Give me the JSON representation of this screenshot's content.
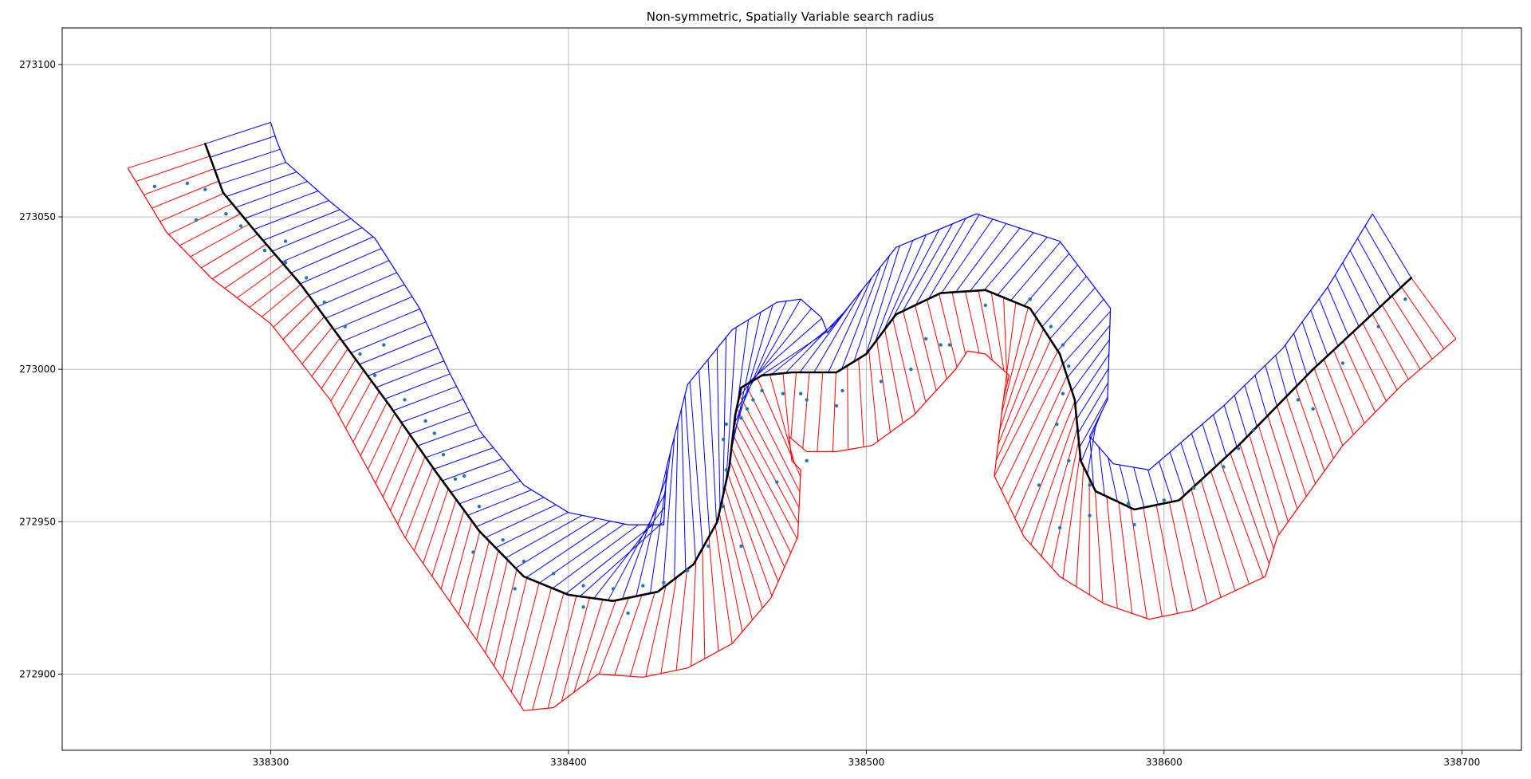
{
  "chart_data": {
    "type": "line",
    "title": "Non-symmetric, Spatially Variable search radius",
    "xlabel": "",
    "ylabel": "",
    "xlim": [
      338230,
      338720
    ],
    "ylim": [
      272875,
      273112
    ],
    "x_ticks": [
      338300,
      338400,
      338500,
      338600,
      338700
    ],
    "y_ticks": [
      272900,
      272950,
      273000,
      273050,
      273100
    ],
    "x_tick_labels": [
      "338300",
      "338400",
      "338500",
      "338600",
      "338700"
    ],
    "y_tick_labels": [
      "272900",
      "272950",
      "273000",
      "273050",
      "273100"
    ],
    "grid": true,
    "legend": "none",
    "colors": {
      "centerline": "#000000",
      "left_transects": "#0000ff",
      "right_transects": "#ff0000",
      "points": "#1f77b4",
      "grid": "#b0b0b0"
    },
    "centerline": {
      "name": "",
      "x": [
        338278,
        338284,
        338295,
        338310,
        338325,
        338340,
        338355,
        338370,
        338385,
        338400,
        338415,
        338430,
        338442,
        338450,
        338454,
        338456,
        338458,
        338465,
        338475,
        338490,
        338500,
        338510,
        338525,
        338540,
        338555,
        338565,
        338570,
        338572,
        338577,
        338590,
        338605,
        338625,
        338650,
        338683
      ],
      "y": [
        273074,
        273058,
        273045,
        273028,
        273008,
        272988,
        272967,
        272947,
        272932,
        272926,
        272924,
        272927,
        272936,
        272950,
        272968,
        272985,
        272994,
        272998,
        272999,
        272999,
        273005,
        273018,
        273025,
        273026,
        273020,
        273005,
        272990,
        272970,
        272960,
        272954,
        272957,
        272975,
        273000,
        273030
      ]
    },
    "left_envelope": {
      "name": "",
      "x": [
        338300,
        338302,
        338305,
        338320,
        338335,
        338350,
        338360,
        338370,
        338385,
        338400,
        338420,
        338432,
        338433,
        338440,
        338455,
        338470,
        338478,
        338485,
        338487,
        338492,
        338510,
        338537,
        338565,
        338582,
        338581,
        338575,
        338583,
        338595,
        338620,
        338640,
        338655,
        338670
      ],
      "y": [
        273081,
        273075,
        273068,
        273055,
        273043,
        273020,
        272999,
        272980,
        272962,
        272953,
        272949,
        272949,
        272968,
        272995,
        273013,
        273022,
        273023,
        273017,
        273012,
        273018,
        273040,
        273051,
        273042,
        273020,
        272990,
        272978,
        272969,
        272967,
        272988,
        273007,
        273027,
        273051
      ]
    },
    "right_envelope": {
      "name": "",
      "x": [
        338252,
        338265,
        338280,
        338300,
        338320,
        338345,
        338370,
        338385,
        338395,
        338410,
        338425,
        338440,
        338455,
        338468,
        338477,
        338478,
        338475,
        338474,
        338480,
        338490,
        338502,
        338516,
        338530,
        338534,
        338540,
        338548,
        338546,
        338543,
        338553,
        338565,
        338580,
        338595,
        338610,
        338634,
        338638,
        338660,
        338680,
        338698
      ],
      "y": [
        273066,
        273045,
        273030,
        273015,
        272990,
        272945,
        272910,
        272888,
        272889,
        272900,
        272899,
        272902,
        272910,
        272925,
        272945,
        272967,
        272970,
        272978,
        272973,
        272973,
        272975,
        272985,
        273000,
        273006,
        273005,
        272998,
        272990,
        272965,
        272945,
        272932,
        272923,
        272918,
        272921,
        272932,
        272945,
        272975,
        272995,
        273010
      ]
    },
    "transect_counts": {
      "left": 130,
      "right": 140
    },
    "points": {
      "name": "",
      "x": [
        338272,
        338278,
        338285,
        338290,
        338298,
        338305,
        338312,
        338318,
        338325,
        338330,
        338335,
        338345,
        338352,
        338358,
        338365,
        338370,
        338378,
        338385,
        338395,
        338405,
        338415,
        338425,
        338432,
        338440,
        338447,
        338452,
        338453,
        338452,
        338453,
        338458,
        338460,
        338462,
        338465,
        338472,
        338480,
        338492,
        338505,
        338515,
        338525,
        338540,
        338555,
        338562,
        338566,
        338568,
        338566,
        338564,
        338568,
        338575,
        338588,
        338600,
        338610,
        338620,
        338630,
        338645,
        338660,
        338672,
        338681,
        338261,
        338275,
        338305,
        338338,
        338355,
        338362,
        338368,
        338382,
        338405,
        338420,
        338458,
        338470,
        338480,
        338520,
        338528,
        338558,
        338565,
        338575,
        338590,
        338625,
        338650,
        338478,
        338490
      ],
      "y": [
        273061,
        273059,
        273051,
        273047,
        273039,
        273035,
        273030,
        273022,
        273014,
        273005,
        272998,
        272990,
        272983,
        272972,
        272965,
        272955,
        272944,
        272937,
        272933,
        272929,
        272928,
        272929,
        272930,
        272934,
        272942,
        272955,
        272967,
        272977,
        272982,
        272984,
        272987,
        272990,
        272993,
        272992,
        272990,
        272993,
        272996,
        273000,
        273008,
        273021,
        273023,
        273014,
        273008,
        273001,
        272992,
        272982,
        272970,
        272962,
        272956,
        272957,
        272961,
        272968,
        272980,
        272990,
        273002,
        273014,
        273023,
        273060,
        273049,
        273042,
        273008,
        272979,
        272964,
        272940,
        272928,
        272922,
        272920,
        272942,
        272963,
        272970,
        273010,
        273008,
        272962,
        272948,
        272952,
        272949,
        272974,
        272987,
        272992,
        272988
      ]
    }
  }
}
